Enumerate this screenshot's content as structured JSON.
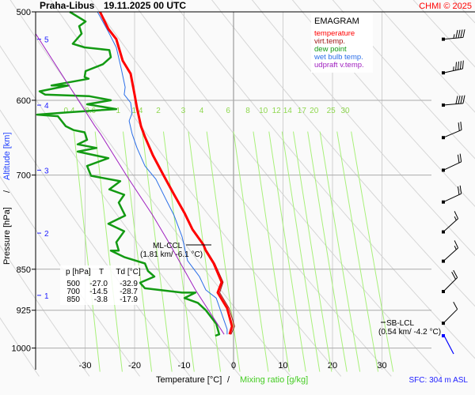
{
  "chart_data": {
    "type": "line",
    "title": "Praha-Libus",
    "datetime": "19.11.2025 00 UTC",
    "credit": "CHMI © 2025",
    "diagram_name": "EMAGRAM",
    "xlabel": "Temperature [°C]",
    "xlabel_sep": "/",
    "xlabel2": "Mixing ratio [g/kg]",
    "ylabel": "Pressure [hPa]",
    "ylabel_sep": "/",
    "ylabel2": "Altitude [km]",
    "xlim": [
      -40,
      40
    ],
    "ylim_hPa": [
      1046,
      500
    ],
    "x_ticks": [
      -30,
      -20,
      -10,
      0,
      10,
      20,
      30
    ],
    "y_ticks": [
      500,
      600,
      700,
      850,
      925,
      1000
    ],
    "altitude_ticks": [
      {
        "km": "5",
        "p": 529
      },
      {
        "km": "4",
        "p": 606
      },
      {
        "km": "3",
        "p": 693
      },
      {
        "km": "2",
        "p": 789
      },
      {
        "km": "1",
        "p": 897
      }
    ],
    "mixing_ratio_labels": [
      "0.4",
      "0.6",
      "1",
      "1.4",
      "2",
      "3",
      "4",
      "6",
      "8",
      "10",
      "12",
      "14",
      "17",
      "20",
      "25",
      "30"
    ],
    "mixing_ratio_label_pressure": 612,
    "legend": [
      {
        "label": "temperature",
        "color": "#ff0000"
      },
      {
        "label": "virt.temp.",
        "color": "#a01818"
      },
      {
        "label": "dew point",
        "color": "#139a13"
      },
      {
        "label": "wet bulb temp.",
        "color": "#2a6ee8"
      },
      {
        "label": "udpraft v.temp.",
        "color": "#a020c0"
      }
    ],
    "series": [
      {
        "name": "temperature",
        "color": "#ff0000",
        "width": 3,
        "points": [
          [
            -27.0,
            500
          ],
          [
            -25.3,
            518
          ],
          [
            -23.7,
            529
          ],
          [
            -23.2,
            538
          ],
          [
            -22.4,
            553
          ],
          [
            -20.8,
            568
          ],
          [
            -20.0,
            593
          ],
          [
            -19.5,
            610
          ],
          [
            -18.7,
            633
          ],
          [
            -17.9,
            647
          ],
          [
            -16.3,
            672
          ],
          [
            -14.1,
            701
          ],
          [
            -12.0,
            729
          ],
          [
            -9.9,
            757
          ],
          [
            -8.3,
            783
          ],
          [
            -6.1,
            808
          ],
          [
            -5.6,
            818
          ],
          [
            -4.0,
            840
          ],
          [
            -2.4,
            873
          ],
          [
            -3.2,
            892
          ],
          [
            -1.3,
            921
          ],
          [
            -0.3,
            956
          ],
          [
            -0.8,
            972
          ]
        ]
      },
      {
        "name": "virt.temp.",
        "color": "#a01818",
        "width": 1,
        "points": [
          [
            -5.4,
            818
          ],
          [
            -3.8,
            840
          ],
          [
            -2.1,
            873
          ],
          [
            -2.8,
            892
          ],
          [
            -0.9,
            921
          ],
          [
            0.2,
            956
          ],
          [
            -0.5,
            972
          ]
        ]
      },
      {
        "name": "dew point",
        "color": "#139a13",
        "width": 2.5,
        "points": [
          [
            -33.1,
            500
          ],
          [
            -29.9,
            510
          ],
          [
            -31.2,
            515
          ],
          [
            -30.7,
            523
          ],
          [
            -32.5,
            534
          ],
          [
            -30.1,
            538
          ],
          [
            -25.1,
            541
          ],
          [
            -24.8,
            549
          ],
          [
            -26.4,
            557
          ],
          [
            -29.9,
            565
          ],
          [
            -30.1,
            572
          ],
          [
            -29.3,
            574
          ],
          [
            -36.8,
            582
          ],
          [
            -33.3,
            582
          ],
          [
            -39.2,
            589
          ],
          [
            -38.1,
            593
          ],
          [
            -29.1,
            595
          ],
          [
            -24.8,
            600
          ],
          [
            -29.6,
            605
          ],
          [
            -23.7,
            611
          ],
          [
            -33.3,
            615
          ],
          [
            -39.7,
            618
          ],
          [
            -35.5,
            620
          ],
          [
            -33.9,
            633
          ],
          [
            -32.3,
            638
          ],
          [
            -30.1,
            641
          ],
          [
            -29.6,
            651
          ],
          [
            -31.5,
            657
          ],
          [
            -27.7,
            662
          ],
          [
            -31.5,
            667
          ],
          [
            -25.3,
            676
          ],
          [
            -29.6,
            687
          ],
          [
            -28.8,
            701
          ],
          [
            -22.9,
            709
          ],
          [
            -25.1,
            721
          ],
          [
            -22.1,
            729
          ],
          [
            -23.2,
            741
          ],
          [
            -21.9,
            761
          ],
          [
            -25.3,
            774
          ],
          [
            -22.1,
            786
          ],
          [
            -23.7,
            804
          ],
          [
            -23.2,
            818
          ],
          [
            -24.8,
            818
          ],
          [
            -22.1,
            829
          ],
          [
            -17.9,
            840
          ],
          [
            -17.3,
            853
          ],
          [
            -16.0,
            863
          ],
          [
            -18.9,
            874
          ],
          [
            -17.9,
            884
          ],
          [
            -10.4,
            892
          ],
          [
            -7.7,
            892
          ],
          [
            -9.9,
            902
          ],
          [
            -7.2,
            911
          ],
          [
            -5.6,
            925
          ],
          [
            -3.5,
            951
          ],
          [
            -2.9,
            972
          ],
          [
            -3.7,
            975
          ]
        ]
      },
      {
        "name": "wet bulb temp.",
        "color": "#2a6ee8",
        "width": 1,
        "points": [
          [
            -27.5,
            500
          ],
          [
            -25.3,
            521
          ],
          [
            -23.7,
            538
          ],
          [
            -22.7,
            562
          ],
          [
            -21.9,
            584
          ],
          [
            -22.1,
            593
          ],
          [
            -20.8,
            603
          ],
          [
            -20.5,
            616
          ],
          [
            -21.1,
            626
          ],
          [
            -20.5,
            643
          ],
          [
            -19.5,
            662
          ],
          [
            -17.9,
            687
          ],
          [
            -15.7,
            706
          ],
          [
            -13.6,
            737
          ],
          [
            -12.0,
            761
          ],
          [
            -10.4,
            795
          ],
          [
            -9.3,
            835
          ],
          [
            -6.9,
            863
          ],
          [
            -5.6,
            887
          ],
          [
            -3.5,
            902
          ],
          [
            -1.3,
            962
          ],
          [
            -1.3,
            972
          ]
        ]
      },
      {
        "name": "udpraft v.temp.",
        "color": "#a020c0",
        "width": 1,
        "points": [
          [
            -40.0,
            523
          ],
          [
            -28.0,
            633
          ],
          [
            -26.9,
            643
          ],
          [
            -21.6,
            701
          ],
          [
            -16.3,
            761
          ],
          [
            -13.1,
            804
          ],
          [
            -7.7,
            887
          ],
          [
            -1.9,
            972
          ]
        ]
      }
    ],
    "table": {
      "headers": [
        "p [hPa]",
        "T",
        "Td [°C]"
      ],
      "rows": [
        [
          "500",
          "-27.0",
          "-32.9"
        ],
        [
          "700",
          "-14.5",
          "-28.7"
        ],
        [
          "850",
          "-3.8",
          "-17.9"
        ]
      ]
    },
    "annotations": {
      "ml_ccl": {
        "label": "ML-CCL",
        "detail": "(1.81 km/ -6.1 °C)",
        "p": 808,
        "T": -6.1
      },
      "sb_lcl": {
        "label": "SB-LCL",
        "detail": "(0.54 km/ -4.2 °C)",
        "p": 946
      }
    },
    "wind_barbs": [
      {
        "p": 529,
        "dir": 265,
        "kt": 45
      },
      {
        "p": 567,
        "dir": 258,
        "kt": 45
      },
      {
        "p": 606,
        "dir": 265,
        "kt": 40
      },
      {
        "p": 648,
        "dir": 247,
        "kt": 20
      },
      {
        "p": 693,
        "dir": 245,
        "kt": 20
      },
      {
        "p": 740,
        "dir": 245,
        "kt": 20
      },
      {
        "p": 787,
        "dir": 228,
        "kt": 15
      },
      {
        "p": 836,
        "dir": 228,
        "kt": 15
      },
      {
        "p": 890,
        "dir": 225,
        "kt": 20
      },
      {
        "p": 950,
        "dir": 225,
        "kt": 10
      }
    ],
    "surface": "SFC: 304 m ASL"
  }
}
